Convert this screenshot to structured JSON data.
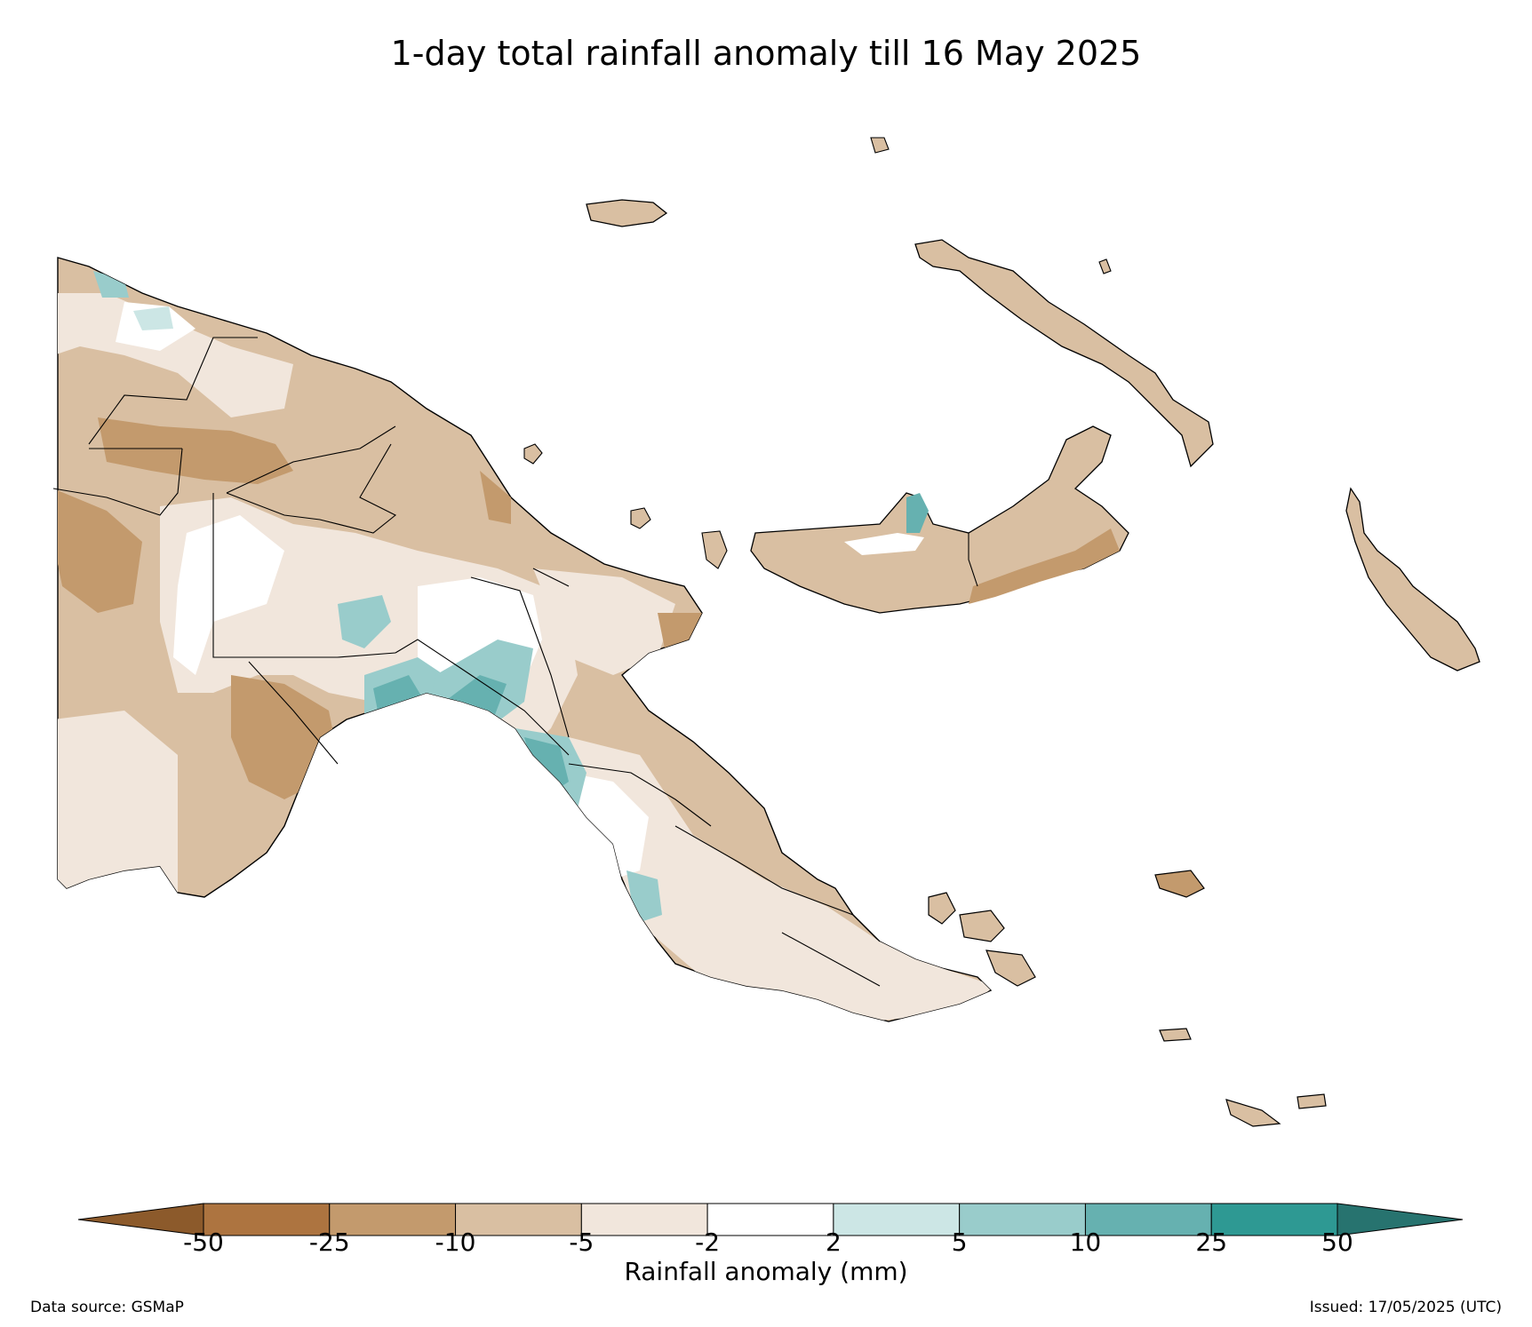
{
  "title": "1-day total rainfall anomaly till 16 May 2025",
  "colorbar": {
    "label": "Rainfall anomaly (mm)",
    "ticks": [
      "-50",
      "-25",
      "-10",
      "-5",
      "-2",
      "2",
      "5",
      "10",
      "25",
      "50"
    ],
    "colors": {
      "extend_low": "#8c5a2b",
      "lt_neg25": "#ad7440",
      "neg25_neg10": "#c39a6d",
      "neg10_neg5": "#d9bfa2",
      "neg5_neg2": "#f1e6dc",
      "neg2_2": "#ffffff",
      "2_5": "#cce6e5",
      "5_10": "#99cccb",
      "10_25": "#66b1b0",
      "25_50": "#2e9993",
      "extend_high": "#27736f"
    }
  },
  "footer": {
    "source": "Data source: GSMaP",
    "issued": "Issued: 17/05/2025 (UTC)"
  }
}
